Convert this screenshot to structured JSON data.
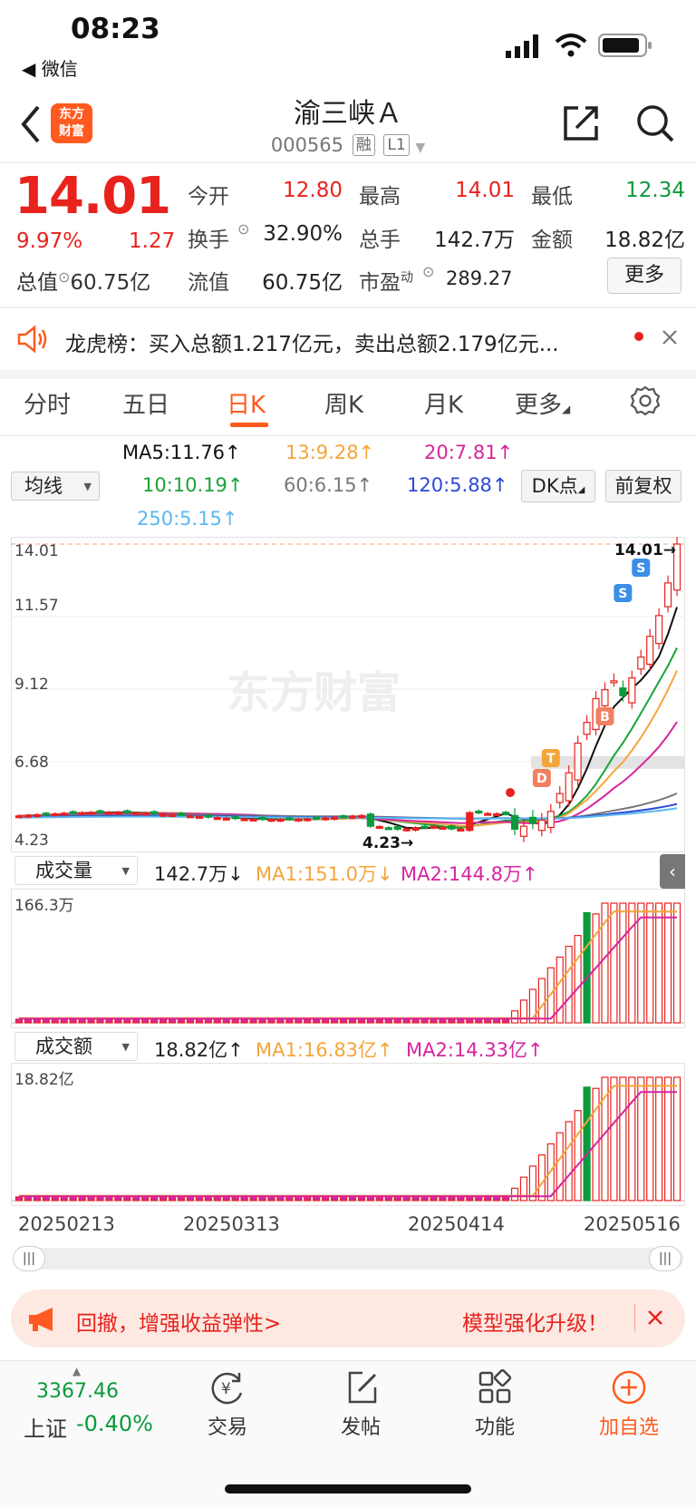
{
  "status": {
    "time": "08:23",
    "back_app": "◀ 微信"
  },
  "header": {
    "logo_line1": "东方",
    "logo_line2": "财富",
    "stock_name": "渝三峡Ａ",
    "stock_code": "000565",
    "tag_margin": "融",
    "tag_level": "L1"
  },
  "quote": {
    "price": "14.01",
    "change_pct": "9.97%",
    "change_amt": "1.27",
    "total_value_label": "总值",
    "total_value": "60.75亿",
    "open_label": "今开",
    "open": "12.80",
    "high_label": "最高",
    "high": "14.01",
    "low_label": "最低",
    "low": "12.34",
    "turnover_label": "换手",
    "turnover": "32.90%",
    "volume_label": "总手",
    "volume": "142.7万",
    "amount_label": "金额",
    "amount": "18.82亿",
    "float_label": "流值",
    "float_value": "60.75亿",
    "pe_label": "市盈",
    "pe_sup": "动",
    "pe": "289.27",
    "more_label": "更多"
  },
  "notice": {
    "text": "龙虎榜：买入总额1.217亿元，卖出总额2.179亿元..."
  },
  "tabs": [
    "分时",
    "五日",
    "日K",
    "周K",
    "月K",
    "更多"
  ],
  "ma_row": {
    "selector": "均线",
    "ma5": "MA5:11.76↑",
    "ma13": "13:9.28↑",
    "ma20": "20:7.81↑",
    "ma10": "10:10.19↑",
    "ma60": "60:6.15↑",
    "ma120": "120:5.88↑",
    "ma250": "250:5.15↑",
    "dk_label": "DK点",
    "adjust_label": "前复权"
  },
  "colors": {
    "up": "#e8231e",
    "down": "#0b9a3c",
    "ma5": "#111111",
    "ma10": "#1aa33a",
    "ma13": "#f4a53a",
    "ma20": "#d6259f",
    "ma60": "#777777",
    "ma120": "#2b49d8",
    "ma250": "#5bb8f0",
    "accent": "#ff5a1f"
  },
  "chart_data": [
    {
      "type": "candlestick",
      "title": "日K",
      "y_ticks": [
        "14.01",
        "11.57",
        "9.12",
        "6.68",
        "4.23"
      ],
      "ylim": [
        4.23,
        14.01
      ],
      "high_marker": "14.01→",
      "low_marker": "4.23→",
      "signals": [
        "S",
        "S",
        "B",
        "T",
        "D"
      ],
      "recent_close_estimates": [
        4.4,
        4.5,
        4.6,
        4.7,
        5.0,
        5.6,
        6.3,
        7.3,
        8.0,
        8.8,
        9.1,
        9.4,
        8.9,
        9.5,
        10.2,
        10.9,
        11.6,
        12.7,
        14.01
      ]
    },
    {
      "type": "bar",
      "title": "成交量",
      "selector": "成交量",
      "value": "142.7万↓",
      "ma1": "MA1:151.0万↓",
      "ma2": "MA2:144.8万↑",
      "y_max_label": "166.3万"
    },
    {
      "type": "bar",
      "title": "成交额",
      "selector": "成交额",
      "value": "18.82亿↑",
      "ma1": "MA1:16.83亿↑",
      "ma2": "MA2:14.33亿↑",
      "y_max_label": "18.82亿",
      "x_ticks": [
        "20250213",
        "20250313",
        "20250414",
        "20250516"
      ]
    }
  ],
  "banner": {
    "left": "回撤，增强收益弹性>",
    "right": "模型强化升级！"
  },
  "bottom_nav": {
    "index_value": "3367.46",
    "index_name": "上证",
    "index_change": "-0.40%",
    "items": [
      "交易",
      "发帖",
      "功能",
      "加自选"
    ]
  }
}
